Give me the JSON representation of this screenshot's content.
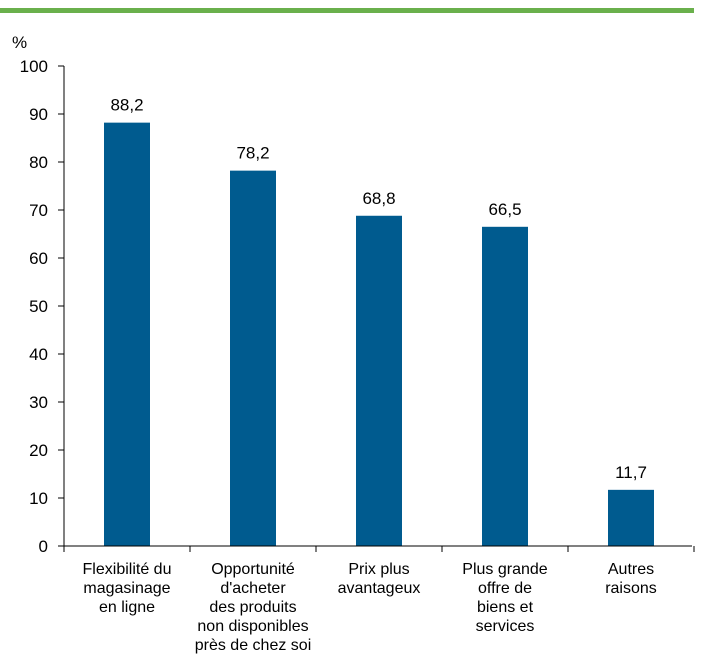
{
  "colors": {
    "top_rule": "#6ab04c",
    "bar": "#005b8f",
    "axis": "#000000"
  },
  "chart_data": {
    "type": "bar",
    "y_unit": "%",
    "ylim": [
      0,
      100
    ],
    "y_ticks": [
      0,
      10,
      20,
      30,
      40,
      50,
      60,
      70,
      80,
      90,
      100
    ],
    "grid": false,
    "categories": [
      [
        "Flexibilité du",
        "magasinage",
        "en ligne"
      ],
      [
        "Opportunité",
        "d'acheter",
        "des produits",
        "non disponibles",
        "près de chez soi"
      ],
      [
        "Prix plus",
        "avantageux"
      ],
      [
        "Plus grande",
        "offre de",
        "biens et",
        "services"
      ],
      [
        "Autres",
        "raisons"
      ]
    ],
    "values": [
      88.2,
      78.2,
      68.8,
      66.5,
      11.7
    ],
    "value_labels": [
      "88,2",
      "78,2",
      "68,8",
      "66,5",
      "11,7"
    ]
  }
}
